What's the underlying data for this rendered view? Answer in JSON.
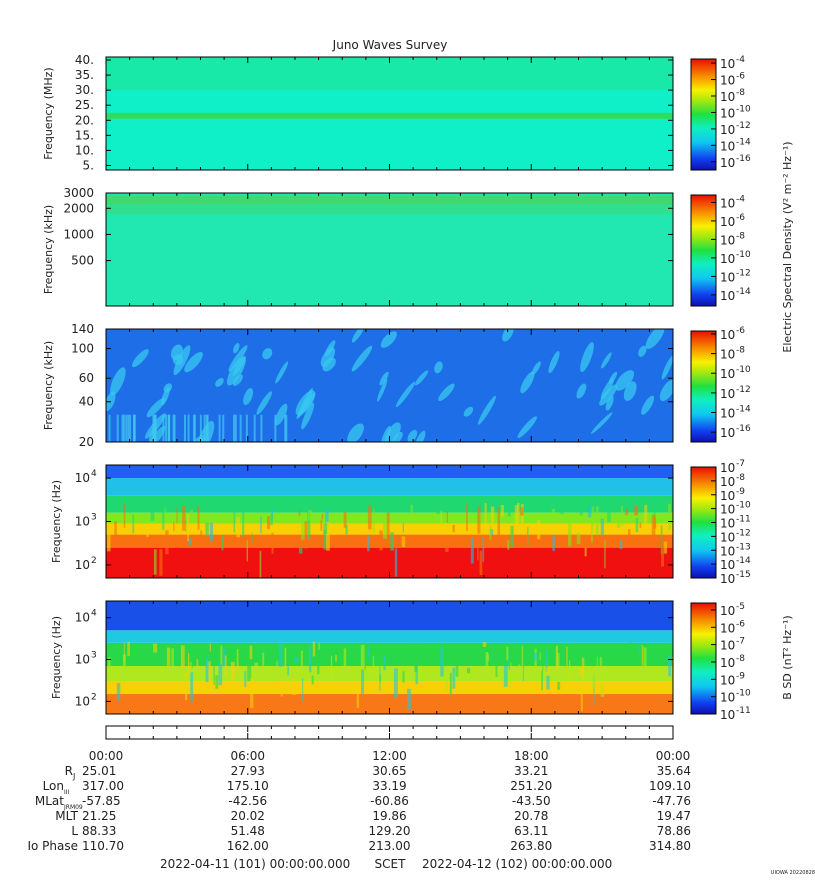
{
  "chart_data": {
    "type": "heatmap",
    "title": "Juno Waves Survey",
    "panels": [
      {
        "ylabel": "Frequency (MHz)",
        "yscale": "linear",
        "ylim": [
          3.5,
          41
        ],
        "yticks": [
          "40.",
          "35.",
          "30.",
          "25.",
          "20.",
          "15.",
          "10.",
          "5."
        ],
        "ytick_values": [
          40,
          35,
          30,
          25,
          20,
          15,
          10,
          5
        ],
        "background": "#10f0c8",
        "features": [
          {
            "kind": "band",
            "y_from": 20.5,
            "y_to": 22.5,
            "color": "#30dc60"
          },
          {
            "kind": "band",
            "y_from": 30,
            "y_to": 41,
            "color": "#18e8a8"
          }
        ],
        "colorbar": {
          "ticks": [
            "-4",
            "-6",
            "-8",
            "-10",
            "-12",
            "-14",
            "-16"
          ],
          "exp_values": [
            -4,
            -6,
            -8,
            -10,
            -12,
            -14,
            -16
          ],
          "range": [
            -17,
            -3.5
          ]
        }
      },
      {
        "ylabel": "Frequency (kHz)",
        "yscale": "log",
        "ylim": [
          150,
          3000
        ],
        "yticks": [
          "3000",
          "2000",
          "1000",
          "500"
        ],
        "ytick_values": [
          3000,
          2000,
          1000,
          500
        ],
        "background": "#20e8b0",
        "features": [
          {
            "kind": "band",
            "y_from": 2200,
            "y_to": 2800,
            "color": "#40d870"
          },
          {
            "kind": "band",
            "y_from": 1700,
            "y_to": 2200,
            "color": "#30e090"
          }
        ],
        "colorbar": {
          "ticks": [
            "-4",
            "-6",
            "-8",
            "-10",
            "-12",
            "-14"
          ],
          "exp_values": [
            -4,
            -6,
            -8,
            -10,
            -12,
            -14
          ],
          "range": [
            -15.2,
            -3.2
          ]
        }
      },
      {
        "ylabel": "Frequency (kHz)",
        "yscale": "log",
        "ylim": [
          20,
          140
        ],
        "yticks": [
          "140",
          "100",
          "60",
          "40",
          "20"
        ],
        "ytick_values": [
          140,
          100,
          60,
          40,
          20
        ],
        "background": "#1e6ee8",
        "features": [
          {
            "kind": "blobs",
            "color": "#38c8f0"
          }
        ],
        "colorbar": {
          "ticks": [
            "-6",
            "-8",
            "-10",
            "-12",
            "-14",
            "-16"
          ],
          "exp_values": [
            -6,
            -8,
            -10,
            -12,
            -14,
            -16
          ],
          "range": [
            -17,
            -5.7
          ]
        },
        "side_label": "Electric Spectral Density (V² m⁻² Hz⁻¹)"
      },
      {
        "ylabel": "Frequency (Hz)",
        "yscale": "log",
        "ylim": [
          50,
          20000
        ],
        "yticks": [
          "10",
          "10",
          "10"
        ],
        "ytick_exp": [
          "4",
          "3",
          "2"
        ],
        "ytick_values": [
          10000,
          1000,
          100
        ],
        "layers": [
          {
            "y_from": 50,
            "y_to": 250,
            "color": "#f01010"
          },
          {
            "y_from": 250,
            "y_to": 500,
            "color": "#f87010"
          },
          {
            "y_from": 500,
            "y_to": 900,
            "color": "#f8d000"
          },
          {
            "y_from": 900,
            "y_to": 1600,
            "color": "#80e820"
          },
          {
            "y_from": 1600,
            "y_to": 4000,
            "color": "#20d870"
          },
          {
            "y_from": 4000,
            "y_to": 10000,
            "color": "#20c0e8"
          },
          {
            "y_from": 10000,
            "y_to": 20000,
            "color": "#2060f0"
          }
        ],
        "colorbar": {
          "ticks": [
            "-7",
            "-8",
            "-9",
            "-10",
            "-11",
            "-12",
            "-13",
            "-14",
            "-15"
          ],
          "exp_values": [
            -7,
            -8,
            -9,
            -10,
            -11,
            -12,
            -13,
            -14,
            -15
          ],
          "range": [
            -15,
            -7
          ]
        }
      },
      {
        "ylabel": "Frequency (Hz)",
        "yscale": "log",
        "ylim": [
          50,
          25000
        ],
        "yticks": [
          "10",
          "10",
          "10"
        ],
        "ytick_exp": [
          "4",
          "3",
          "2"
        ],
        "ytick_values": [
          10000,
          1000,
          100
        ],
        "layers": [
          {
            "y_from": 50,
            "y_to": 150,
            "color": "#f87818"
          },
          {
            "y_from": 150,
            "y_to": 300,
            "color": "#f8d008"
          },
          {
            "y_from": 300,
            "y_to": 700,
            "color": "#b0e820"
          },
          {
            "y_from": 700,
            "y_to": 2500,
            "color": "#28d848"
          },
          {
            "y_from": 2500,
            "y_to": 5000,
            "color": "#20c8e0"
          },
          {
            "y_from": 5000,
            "y_to": 25000,
            "color": "#1850e8"
          }
        ],
        "colorbar": {
          "ticks": [
            "-5",
            "-6",
            "-7",
            "-8",
            "-9",
            "-10",
            "-11"
          ],
          "exp_values": [
            -5,
            -6,
            -7,
            -8,
            -9,
            -10,
            -11
          ],
          "range": [
            -11,
            -4.6
          ]
        },
        "side_label": "B SD (nT² Hz⁻¹)"
      }
    ],
    "x_axis": {
      "ticks": [
        "00:00",
        "06:00",
        "12:00",
        "18:00",
        "00:00"
      ],
      "hours": [
        0,
        6,
        12,
        18,
        24
      ]
    },
    "ephemeris": [
      {
        "label": "R",
        "sub": "J",
        "values": [
          "25.01",
          "27.93",
          "30.65",
          "33.21",
          "35.64"
        ]
      },
      {
        "label": "Lon",
        "sub": "III",
        "values": [
          "317.00",
          "175.10",
          "33.19",
          "251.20",
          "109.10"
        ]
      },
      {
        "label": "MLat",
        "sub": "JRM09",
        "values": [
          "-57.85",
          "-42.56",
          "-60.86",
          "-43.50",
          "-47.76"
        ]
      },
      {
        "label": "MLT",
        "sub": "",
        "values": [
          "21.25",
          "20.02",
          "19.86",
          "20.78",
          "19.47"
        ]
      },
      {
        "label": "L",
        "sub": "",
        "values": [
          "88.33",
          "51.48",
          "129.20",
          "63.11",
          "78.86"
        ]
      },
      {
        "label": "Io Phase",
        "sub": "",
        "values": [
          "110.70",
          "162.00",
          "213.00",
          "263.80",
          "314.80"
        ]
      }
    ],
    "footer": {
      "start": "2022-04-11 (101) 00:00:00.000",
      "mid": "SCET",
      "end": "2022-04-12 (102) 00:00:00.000"
    },
    "stamp": "UIOWA 20220828"
  }
}
